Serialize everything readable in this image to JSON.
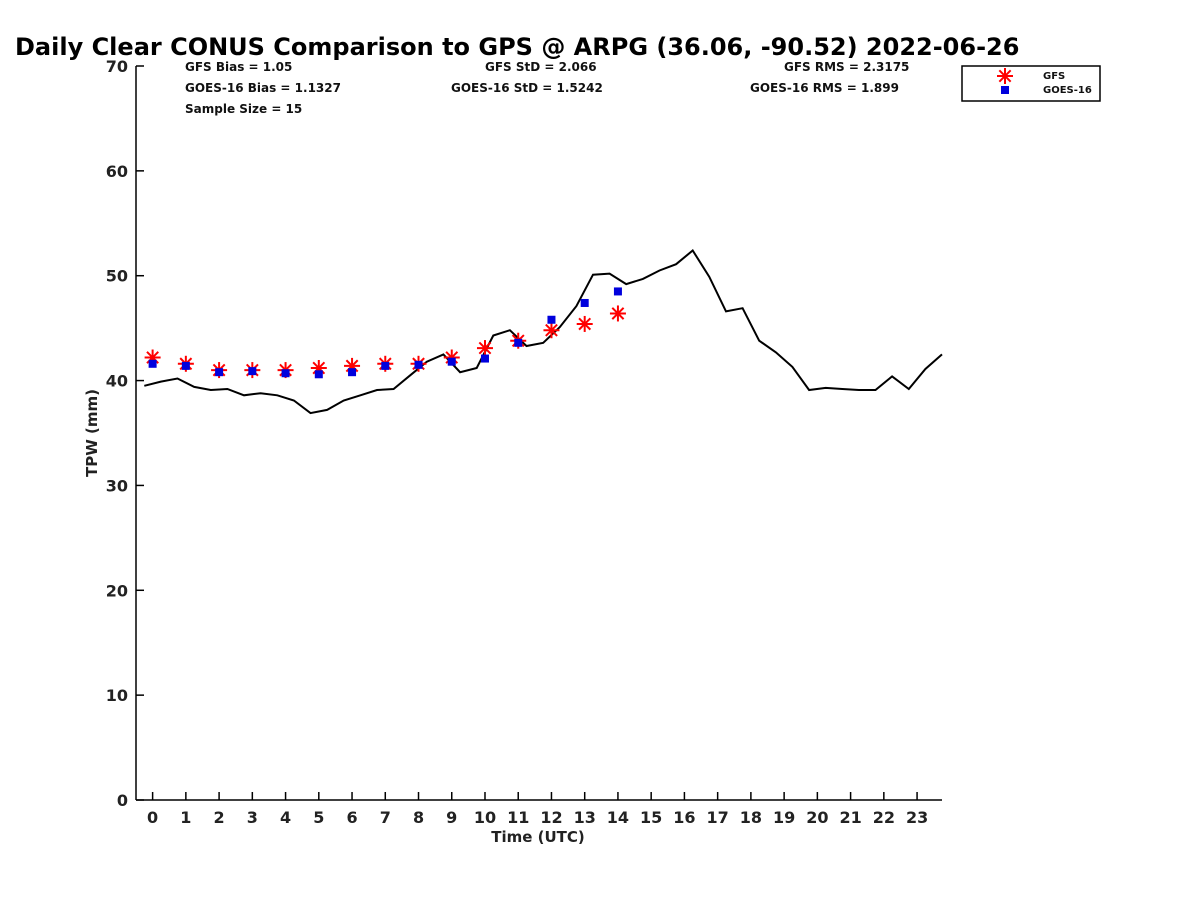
{
  "chart_data": {
    "type": "line",
    "title": "Daily Clear CONUS Comparison to GPS @ ARPG (36.06, -90.52) 2022-06-26",
    "xlabel": "Time (UTC)",
    "ylabel": "TPW (mm)",
    "xlim": [
      -0.5,
      23.75
    ],
    "ylim": [
      0,
      70
    ],
    "x_ticks": [
      0,
      1,
      2,
      3,
      4,
      5,
      6,
      7,
      8,
      9,
      10,
      11,
      12,
      13,
      14,
      15,
      16,
      17,
      18,
      19,
      20,
      21,
      22,
      23
    ],
    "y_ticks": [
      0,
      10,
      20,
      30,
      40,
      50,
      60,
      70
    ],
    "grid": false,
    "legend_position": "top-right-outside",
    "stats": {
      "gfs_bias": "GFS Bias = 1.05",
      "gfs_std": "GFS StD = 2.066",
      "gfs_rms": "GFS RMS = 2.3175",
      "goes_bias": "GOES-16 Bias = 1.1327",
      "goes_std": "GOES-16 StD = 1.5242",
      "goes_rms": "GOES-16 RMS = 1.899",
      "sample_size": "Sample Size = 15"
    },
    "series": [
      {
        "name": "",
        "kind": "line",
        "color": "#000000",
        "x": [
          -0.25,
          0.25,
          0.75,
          1.25,
          1.75,
          2.25,
          2.75,
          3.25,
          3.75,
          4.25,
          4.75,
          5.25,
          5.75,
          6.25,
          6.75,
          7.25,
          7.75,
          8.25,
          8.75,
          9.25,
          9.75,
          10.25,
          10.75,
          11.25,
          11.75,
          12.25,
          12.75,
          13.25,
          13.75,
          14.25,
          14.75,
          15.25,
          15.75,
          16.25,
          16.75,
          17.25,
          17.75,
          18.25,
          18.75,
          19.25,
          19.75,
          20.25,
          20.75,
          21.25,
          21.75,
          22.25,
          22.75,
          23.25,
          23.75
        ],
        "values": [
          39.5,
          39.9,
          40.2,
          39.4,
          39.1,
          39.2,
          38.6,
          38.8,
          38.6,
          38.1,
          36.9,
          37.2,
          38.1,
          38.6,
          39.1,
          39.2,
          40.5,
          41.8,
          42.5,
          40.8,
          41.2,
          44.3,
          44.8,
          43.3,
          43.6,
          45.1,
          47.1,
          50.1,
          50.2,
          49.2,
          49.7,
          50.5,
          51.1,
          52.4,
          49.9,
          46.6,
          46.9,
          43.8,
          42.7,
          41.3,
          39.1,
          39.3,
          39.2,
          39.1,
          39.1,
          40.4,
          39.2,
          41.1,
          42.5
        ]
      },
      {
        "name": "GFS",
        "kind": "scatter",
        "marker": "asterisk",
        "color": "#ff0000",
        "x": [
          0,
          1,
          2,
          3,
          4,
          5,
          6,
          7,
          8,
          9,
          10,
          11,
          12,
          13,
          14
        ],
        "values": [
          42.2,
          41.6,
          41.0,
          41.0,
          41.0,
          41.2,
          41.4,
          41.6,
          41.6,
          42.2,
          43.1,
          43.8,
          44.8,
          45.4,
          46.4
        ]
      },
      {
        "name": "GOES-16",
        "kind": "scatter",
        "marker": "square",
        "color": "#0000dd",
        "x": [
          0,
          1,
          2,
          3,
          4,
          5,
          6,
          7,
          8,
          9,
          10,
          11,
          12,
          13,
          14
        ],
        "values": [
          41.6,
          41.4,
          40.8,
          40.9,
          40.7,
          40.6,
          40.8,
          41.4,
          41.5,
          41.8,
          42.1,
          43.6,
          45.8,
          47.4,
          48.5
        ]
      }
    ]
  }
}
